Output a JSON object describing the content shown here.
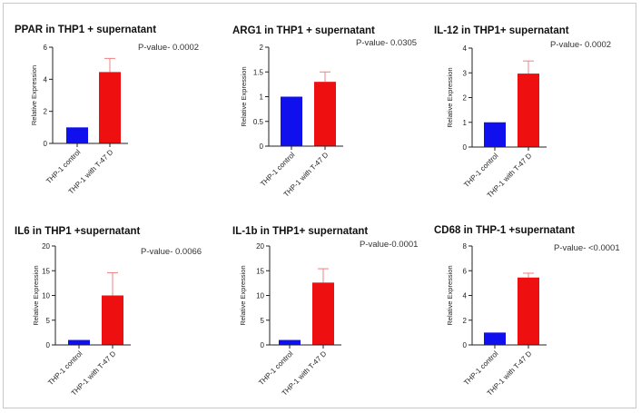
{
  "chart_data": [
    {
      "type": "bar",
      "title": "PPAR in THP1 + supernatant",
      "annotation": "P-value- 0.0002",
      "ylabel": "Relative Expression",
      "categories": [
        "THP-1 control",
        "THP-1 with T-47 D"
      ],
      "values": [
        1.0,
        4.45
      ],
      "error_upper": [
        1.0,
        5.3
      ],
      "colors": [
        "#1010ee",
        "#ee1010"
      ],
      "ylim": [
        0,
        6
      ],
      "yticks": [
        0,
        2,
        4,
        6
      ]
    },
    {
      "type": "bar",
      "title": "ARG1 in THP1 + supernatant",
      "annotation": "P-value- 0.0305",
      "ylabel": "Relative Expression",
      "categories": [
        "THP-1 control",
        "THP-1 with T-47 D"
      ],
      "values": [
        1.0,
        1.3
      ],
      "error_upper": [
        1.0,
        1.5
      ],
      "colors": [
        "#1010ee",
        "#ee1010"
      ],
      "ylim": [
        0,
        2.0
      ],
      "yticks": [
        0.0,
        0.5,
        1.0,
        1.5,
        2.0
      ]
    },
    {
      "type": "bar",
      "title": "IL-12 in THP1+ supernatant",
      "annotation": "P-value- 0.0002",
      "ylabel": "Relative Expression",
      "categories": [
        "THP-1 control",
        "THP-1 with T-47 D"
      ],
      "values": [
        1.0,
        2.97
      ],
      "error_upper": [
        1.0,
        3.48
      ],
      "colors": [
        "#1010ee",
        "#ee1010"
      ],
      "ylim": [
        0,
        4
      ],
      "yticks": [
        0,
        1,
        2,
        3,
        4
      ]
    },
    {
      "type": "bar",
      "title": "IL6 in THP1 +supernatant",
      "annotation": "P-value- 0.0066",
      "ylabel": "Relative Expression",
      "categories": [
        "THP-1 control",
        "THP-1 with T-47 D"
      ],
      "values": [
        1.0,
        10.0
      ],
      "error_upper": [
        1.0,
        14.6
      ],
      "colors": [
        "#1010ee",
        "#ee1010"
      ],
      "ylim": [
        0,
        20
      ],
      "yticks": [
        0,
        5,
        10,
        15,
        20
      ]
    },
    {
      "type": "bar",
      "title": "IL-1b in THP1+ supernatant",
      "annotation": "P-value-0.0001",
      "ylabel": "Relative Expression",
      "categories": [
        "THP-1 control",
        "THP-1 with T-47 D"
      ],
      "values": [
        1.0,
        12.6
      ],
      "error_upper": [
        1.0,
        15.4
      ],
      "colors": [
        "#1010ee",
        "#ee1010"
      ],
      "ylim": [
        0,
        20
      ],
      "yticks": [
        0,
        5,
        10,
        15,
        20
      ]
    },
    {
      "type": "bar",
      "title": "CD68 in THP-1 +supernatant",
      "annotation": "P-value- <0.0001",
      "ylabel": "Relative Expression",
      "categories": [
        "THP-1 control",
        "THP-1 with T-47 D"
      ],
      "values": [
        1.0,
        5.45
      ],
      "error_upper": [
        1.0,
        5.8
      ],
      "colors": [
        "#1010ee",
        "#ee1010"
      ],
      "ylim": [
        0,
        8
      ],
      "yticks": [
        0,
        2,
        4,
        6,
        8
      ]
    }
  ]
}
